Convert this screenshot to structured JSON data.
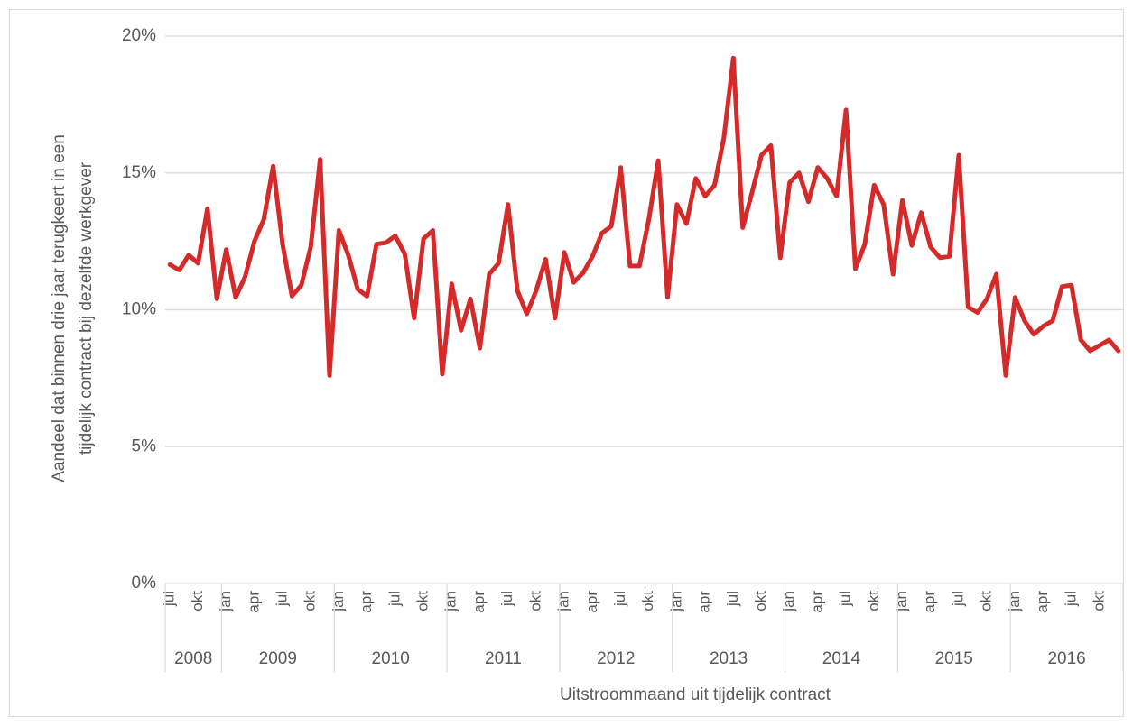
{
  "chart_data": {
    "type": "line",
    "ylabel": [
      "Aandeel dat binnen drie jaar terugkeert in een",
      "tijdelijk contract bij dezelfde werkgever"
    ],
    "xlabel": "Uitstroommaand uit tijdelijk contract",
    "years": [
      "2008",
      "2009",
      "2010",
      "2011",
      "2012",
      "2013",
      "2014",
      "2015",
      "2016"
    ],
    "categories": [
      "jul",
      null,
      null,
      "okt",
      null,
      null,
      "jan",
      null,
      null,
      "apr",
      null,
      null,
      "jul",
      null,
      null,
      "okt",
      null,
      null,
      "jan",
      null,
      null,
      "apr",
      null,
      null,
      "jul",
      null,
      null,
      "okt",
      null,
      null,
      "jan",
      null,
      null,
      "apr",
      null,
      null,
      "jul",
      null,
      null,
      "okt",
      null,
      null,
      "jan",
      null,
      null,
      "apr",
      null,
      null,
      "jul",
      null,
      null,
      "okt",
      null,
      null,
      "jan",
      null,
      null,
      "apr",
      null,
      null,
      "jul",
      null,
      null,
      "okt",
      null,
      null,
      "jan",
      null,
      null,
      "apr",
      null,
      null,
      "jul",
      null,
      null,
      "okt",
      null,
      null,
      "jan",
      null,
      null,
      "apr",
      null,
      null,
      "jul",
      null,
      null,
      "okt",
      null,
      null,
      "jan",
      null,
      null,
      "apr",
      null,
      null,
      "jul",
      null,
      null,
      "okt",
      null,
      null
    ],
    "values": [
      11.65,
      11.45,
      12.0,
      11.7,
      13.7,
      10.4,
      12.2,
      10.45,
      11.2,
      12.5,
      13.3,
      15.25,
      12.4,
      10.5,
      10.9,
      12.3,
      15.5,
      7.6,
      12.9,
      12.0,
      10.75,
      10.5,
      12.4,
      12.45,
      12.7,
      12.05,
      9.7,
      12.6,
      12.9,
      7.65,
      10.95,
      9.25,
      10.4,
      8.6,
      11.3,
      11.7,
      13.85,
      10.7,
      9.85,
      10.7,
      11.85,
      9.7,
      12.1,
      11.0,
      11.35,
      11.95,
      12.8,
      13.05,
      15.2,
      11.6,
      11.6,
      13.3,
      15.45,
      10.45,
      13.85,
      13.15,
      14.8,
      14.15,
      14.55,
      16.3,
      19.2,
      13.0,
      14.3,
      15.65,
      16.0,
      11.9,
      14.65,
      15.0,
      13.95,
      15.2,
      14.8,
      14.15,
      17.3,
      11.5,
      12.4,
      14.55,
      13.85,
      11.3,
      14.0,
      12.35,
      13.55,
      12.3,
      11.9,
      11.95,
      15.65,
      10.1,
      9.9,
      10.4,
      11.3,
      7.6,
      10.45,
      9.6,
      9.1,
      9.4,
      9.6,
      10.85,
      10.9,
      8.9,
      8.5,
      8.7,
      8.9,
      8.5
    ],
    "color": "#d42a2a",
    "ylim": [
      0,
      20
    ],
    "yticks": [
      {
        "value": 0,
        "label": "0%"
      },
      {
        "value": 5,
        "label": "5%"
      },
      {
        "value": 10,
        "label": "10%"
      },
      {
        "value": 15,
        "label": "15%"
      },
      {
        "value": 20,
        "label": "20%"
      }
    ],
    "grid": true
  }
}
